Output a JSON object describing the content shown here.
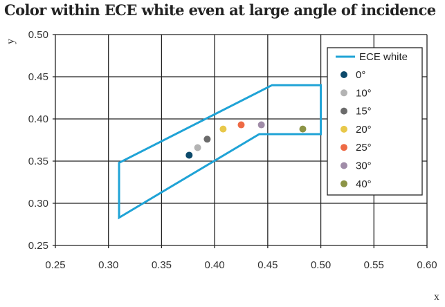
{
  "chart_data": {
    "type": "scatter",
    "title": "Color within ECE white even at large angle of incidence",
    "xlabel": "x",
    "ylabel": "y",
    "xlim": [
      0.25,
      0.6
    ],
    "ylim": [
      0.25,
      0.5
    ],
    "xticks": [
      "0.25",
      "0.30",
      "0.35",
      "0.40",
      "0.45",
      "0.50",
      "0.55",
      "0.60"
    ],
    "yticks": [
      "0.25",
      "0.30",
      "0.35",
      "0.40",
      "0.45",
      "0.50"
    ],
    "grid": true,
    "legend_position": "top-right",
    "region": {
      "name": "ECE white",
      "color": "#1fa3d6",
      "points": [
        [
          0.31,
          0.348
        ],
        [
          0.454,
          0.44
        ],
        [
          0.5,
          0.44
        ],
        [
          0.5,
          0.382
        ],
        [
          0.442,
          0.382
        ],
        [
          0.31,
          0.283
        ]
      ]
    },
    "series": [
      {
        "name": "0°",
        "color": "#0d4a6b",
        "x": 0.376,
        "y": 0.357
      },
      {
        "name": "10°",
        "color": "#b3b3b3",
        "x": 0.384,
        "y": 0.366
      },
      {
        "name": "15°",
        "color": "#6b6b6b",
        "x": 0.393,
        "y": 0.376
      },
      {
        "name": "20°",
        "color": "#e8c84a",
        "x": 0.408,
        "y": 0.388
      },
      {
        "name": "25°",
        "color": "#ee6a45",
        "x": 0.425,
        "y": 0.393
      },
      {
        "name": "30°",
        "color": "#a08ca8",
        "x": 0.444,
        "y": 0.393
      },
      {
        "name": "40°",
        "color": "#8c9446",
        "x": 0.483,
        "y": 0.388
      }
    ]
  }
}
